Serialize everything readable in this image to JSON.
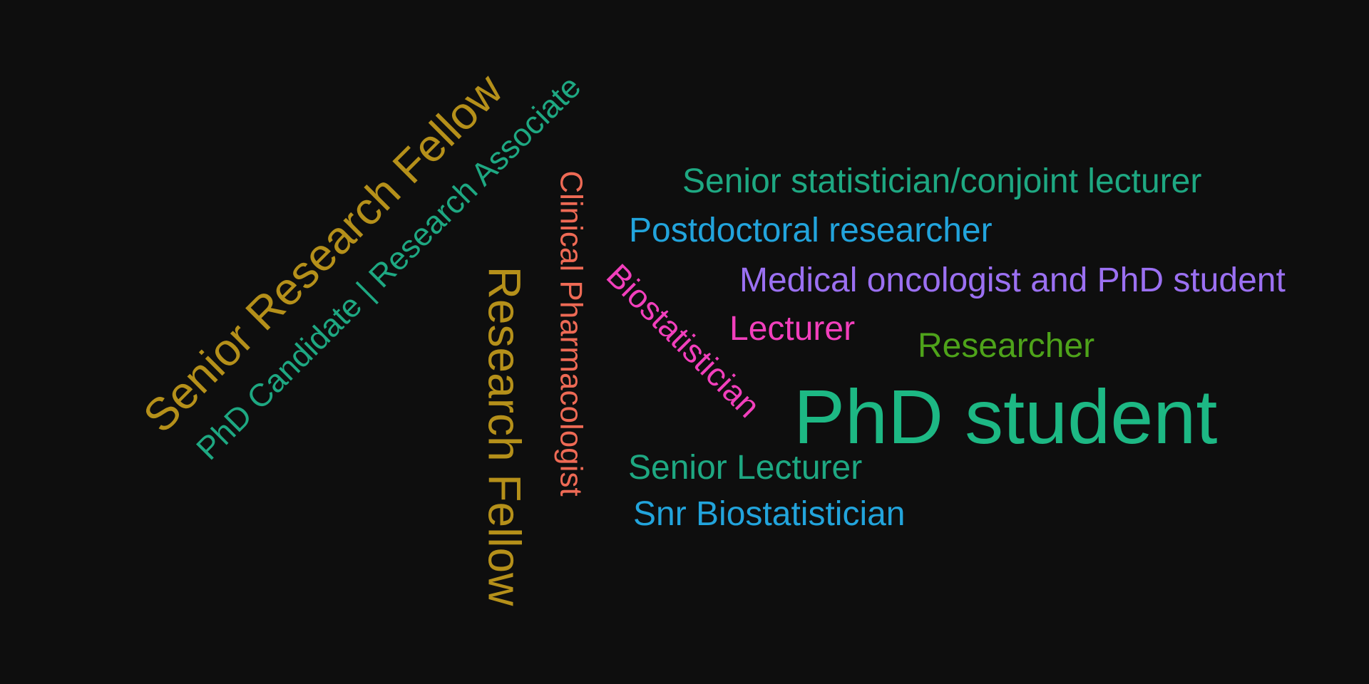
{
  "words": [
    {
      "text": "PhD student",
      "color": "#1db884"
    },
    {
      "text": "Senior Research Fellow",
      "color": "#b5901a"
    },
    {
      "text": "Research Fellow",
      "color": "#b5901a"
    },
    {
      "text": "PhD Candidate | Research Associate",
      "color": "#1ea882"
    },
    {
      "text": "Clinical Pharmacologist",
      "color": "#ee6a55"
    },
    {
      "text": "Biostatistician",
      "color": "#f23fbc"
    },
    {
      "text": "Senior statistician/conjoint lecturer",
      "color": "#1ea882"
    },
    {
      "text": "Postdoctoral researcher",
      "color": "#22a4dc"
    },
    {
      "text": "Medical oncologist and PhD student",
      "color": "#9b70f2"
    },
    {
      "text": "Lecturer",
      "color": "#f23fbc"
    },
    {
      "text": "Researcher",
      "color": "#4ea31a"
    },
    {
      "text": "Senior Lecturer",
      "color": "#1ea882"
    },
    {
      "text": "Snr Biostatistician",
      "color": "#22a4dc"
    }
  ]
}
